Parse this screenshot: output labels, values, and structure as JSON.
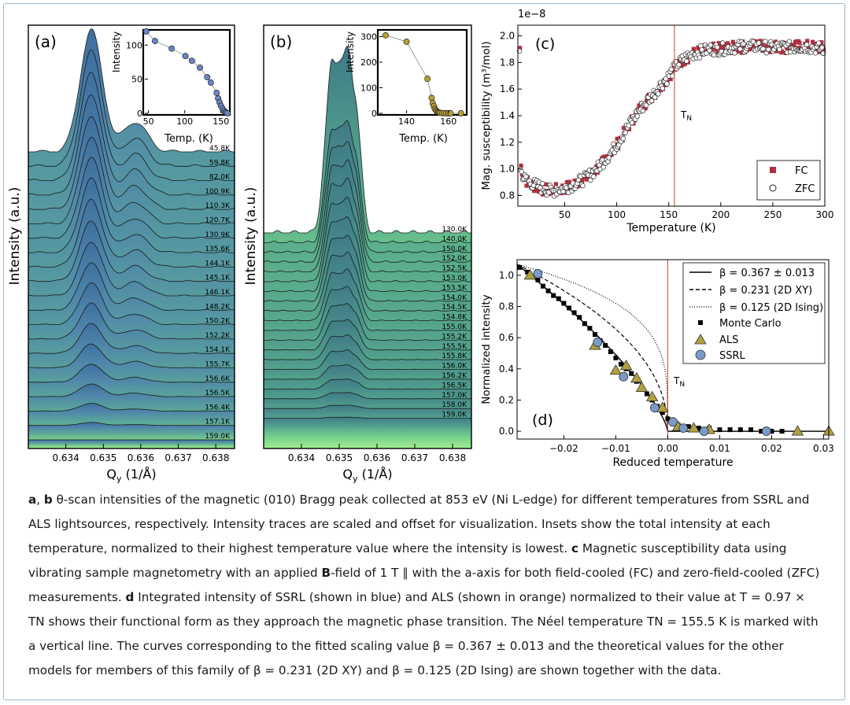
{
  "panels": {
    "a": {
      "label": "(a)",
      "ylabel": "Intensity (a.u.)",
      "xlabel": "Q",
      "xlabel_sub": "y",
      "xlabel_unit": " (1/Å)",
      "xticks": [
        "0.634",
        "0.635",
        "0.636",
        "0.637",
        "0.638"
      ],
      "temps": [
        "45.8K",
        "59.8K",
        "82.0K",
        "100.9K",
        "110.3K",
        "120.7K",
        "130.9K",
        "135.6K",
        "144.1K",
        "145.1K",
        "146.1K",
        "148.2K",
        "150.2K",
        "152.2K",
        "154.1K",
        "155.7K",
        "156.6K",
        "156.5K",
        "156.4K",
        "157.1K",
        "159.0K"
      ],
      "inset": {
        "ylabel": "Intensity",
        "xlabel": "Temp. (K)",
        "xticks": [
          "50",
          "100",
          "150"
        ],
        "yticks": [
          "0",
          "50",
          "100"
        ],
        "xlim": [
          45,
          160
        ],
        "ylim": [
          0,
          120
        ],
        "points": [
          [
            47,
            120
          ],
          [
            59,
            106
          ],
          [
            82,
            95
          ],
          [
            101,
            84
          ],
          [
            110,
            77
          ],
          [
            121,
            67
          ],
          [
            131,
            53
          ],
          [
            136,
            45
          ],
          [
            144,
            30
          ],
          [
            146,
            22
          ],
          [
            148,
            16
          ],
          [
            150,
            11
          ],
          [
            152,
            7
          ],
          [
            154,
            4
          ],
          [
            156,
            2
          ],
          [
            157,
            1
          ],
          [
            159,
            0
          ]
        ]
      }
    },
    "b": {
      "label": "(b)",
      "ylabel": "Intensity (a.u.)",
      "xlabel": "Q",
      "xlabel_sub": "y",
      "xlabel_unit": " (1/Å)",
      "xticks": [
        "0.634",
        "0.635",
        "0.636",
        "0.637",
        "0.638"
      ],
      "temps": [
        "130.0K",
        "140.0K",
        "150.0K",
        "152.0K",
        "152.5K",
        "153.0K",
        "153.5K",
        "154.0K",
        "154.5K",
        "154.8K",
        "155.0K",
        "155.2K",
        "155.5K",
        "155.8K",
        "156.0K",
        "156.2K",
        "156.5K",
        "157.0K",
        "158.0K",
        "159.0K"
      ],
      "inset": {
        "ylabel": "Intensity",
        "xlabel": "Temp. (K)",
        "xticks": [
          "140",
          "160"
        ],
        "yticks": [
          "0",
          "100",
          "200",
          "300"
        ],
        "xlim": [
          127,
          168
        ],
        "ylim": [
          0,
          320
        ],
        "points": [
          [
            130,
            305
          ],
          [
            140,
            280
          ],
          [
            150,
            135
          ],
          [
            152,
            60
          ],
          [
            152.5,
            40
          ],
          [
            153,
            28
          ],
          [
            153.5,
            18
          ],
          [
            154,
            12
          ],
          [
            154.5,
            8
          ],
          [
            155,
            5
          ],
          [
            155.5,
            3
          ],
          [
            156,
            2
          ],
          [
            157,
            1
          ],
          [
            158,
            1
          ],
          [
            159,
            0
          ],
          [
            160,
            0
          ],
          [
            161,
            0
          ],
          [
            166,
            0
          ]
        ]
      }
    },
    "c": {
      "label": "(c)",
      "ylabel": "Mag. susceptibility (m³/mol)",
      "xlabel": "Temperature (K)",
      "exponent": "1e−8",
      "tn_label": "T",
      "tn_sub": "N",
      "xticks": [
        "50",
        "100",
        "150",
        "200",
        "250",
        "300"
      ],
      "yticks": [
        "0.8",
        "1.0",
        "1.2",
        "1.4",
        "1.6",
        "1.8",
        "2.0"
      ],
      "legend": [
        "FC",
        "ZFC"
      ]
    },
    "d": {
      "label": "(d)",
      "ylabel": "Normalized intensity",
      "xlabel": "Reduced temperature",
      "tn_label": "T",
      "tn_sub": "N",
      "xticks": [
        "−0.02",
        "−0.01",
        "0.00",
        "0.01",
        "0.02",
        "0.03"
      ],
      "yticks": [
        "0.0",
        "0.2",
        "0.4",
        "0.6",
        "0.8",
        "1.0"
      ],
      "legend": [
        "β = 0.367 ± 0.013",
        "β = 0.231 (2D XY)",
        "β = 0.125 (2D Ising)",
        "Monte Carlo",
        "ALS",
        "SSRL"
      ]
    }
  },
  "chart_data": [
    {
      "type": "line",
      "panel": "a",
      "title": "",
      "xlabel": "Qy (1/Å)",
      "ylabel": "Intensity (a.u.)",
      "xlim": [
        0.633,
        0.6385
      ],
      "series_names": [
        "45.8K",
        "59.8K",
        "82.0K",
        "100.9K",
        "110.3K",
        "120.7K",
        "130.9K",
        "135.6K",
        "144.1K",
        "145.1K",
        "146.1K",
        "148.2K",
        "150.2K",
        "152.2K",
        "154.1K",
        "155.7K",
        "156.6K",
        "156.5K",
        "156.4K",
        "157.1K",
        "159.0K"
      ],
      "peak_center": 0.6347,
      "shoulder_center": 0.6358
    },
    {
      "type": "line",
      "panel": "b",
      "title": "",
      "xlabel": "Qy (1/Å)",
      "ylabel": "Intensity (a.u.)",
      "xlim": [
        0.633,
        0.6385
      ],
      "series_names": [
        "130.0K",
        "140.0K",
        "150.0K",
        "152.0K",
        "152.5K",
        "153.0K",
        "153.5K",
        "154.0K",
        "154.5K",
        "154.8K",
        "155.0K",
        "155.2K",
        "155.5K",
        "155.8K",
        "156.0K",
        "156.2K",
        "156.5K",
        "157.0K",
        "158.0K",
        "159.0K"
      ],
      "peak_center": 0.6351
    },
    {
      "type": "scatter",
      "panel": "c",
      "xlabel": "Temperature (K)",
      "ylabel": "Mag. susceptibility (m³/mol)",
      "xlim": [
        5,
        300
      ],
      "ylim": [
        0.72,
        2.08
      ],
      "y_scale_factor": "1e-8",
      "tn": 155.5,
      "legend_position": "lower-right",
      "series": [
        {
          "name": "FC",
          "color": "#b03040",
          "points": [
            [
              8,
              1.02
            ],
            [
              12,
              0.92
            ],
            [
              18,
              0.88
            ],
            [
              25,
              0.86
            ],
            [
              32,
              0.84
            ],
            [
              40,
              0.84
            ],
            [
              48,
              0.85
            ],
            [
              55,
              0.87
            ],
            [
              62,
              0.9
            ],
            [
              70,
              0.93
            ],
            [
              78,
              0.98
            ],
            [
              85,
              1.03
            ],
            [
              92,
              1.1
            ],
            [
              100,
              1.18
            ],
            [
              108,
              1.28
            ],
            [
              115,
              1.37
            ],
            [
              122,
              1.45
            ],
            [
              130,
              1.52
            ],
            [
              138,
              1.58
            ],
            [
              145,
              1.65
            ],
            [
              150,
              1.7
            ],
            [
              155,
              1.75
            ],
            [
              160,
              1.8
            ],
            [
              168,
              1.84
            ],
            [
              175,
              1.87
            ],
            [
              185,
              1.89
            ],
            [
              195,
              1.9
            ],
            [
              205,
              1.91
            ],
            [
              215,
              1.91
            ],
            [
              225,
              1.92
            ],
            [
              235,
              1.93
            ],
            [
              245,
              1.92
            ],
            [
              255,
              1.92
            ],
            [
              265,
              1.91
            ],
            [
              275,
              1.92
            ],
            [
              285,
              1.92
            ],
            [
              295,
              1.91
            ]
          ]
        },
        {
          "name": "ZFC",
          "color": "#ffffff",
          "points": [
            [
              7,
              1.0
            ],
            [
              11,
              0.93
            ],
            [
              16,
              0.9
            ],
            [
              22,
              0.88
            ],
            [
              30,
              0.85
            ],
            [
              38,
              0.83
            ],
            [
              45,
              0.85
            ],
            [
              52,
              0.86
            ],
            [
              60,
              0.89
            ],
            [
              68,
              0.92
            ],
            [
              75,
              0.96
            ],
            [
              82,
              1.01
            ],
            [
              90,
              1.08
            ],
            [
              98,
              1.16
            ],
            [
              105,
              1.25
            ],
            [
              112,
              1.33
            ],
            [
              120,
              1.42
            ],
            [
              128,
              1.5
            ],
            [
              135,
              1.56
            ],
            [
              142,
              1.63
            ],
            [
              148,
              1.68
            ],
            [
              153,
              1.73
            ],
            [
              158,
              1.78
            ],
            [
              165,
              1.83
            ],
            [
              172,
              1.86
            ],
            [
              180,
              1.88
            ],
            [
              190,
              1.9
            ],
            [
              200,
              1.9
            ],
            [
              210,
              1.91
            ],
            [
              220,
              1.92
            ],
            [
              230,
              1.92
            ],
            [
              240,
              1.92
            ],
            [
              250,
              1.91
            ],
            [
              260,
              1.92
            ],
            [
              270,
              1.91
            ],
            [
              280,
              1.92
            ],
            [
              290,
              1.91
            ],
            [
              298,
              1.9
            ]
          ]
        }
      ]
    },
    {
      "type": "scatter",
      "panel": "d",
      "xlabel": "Reduced temperature",
      "ylabel": "Normalized intensity",
      "xlim": [
        -0.029,
        0.031
      ],
      "ylim": [
        -0.05,
        1.1
      ],
      "tn": 0.0,
      "legend_position": "top-right",
      "series": [
        {
          "name": "Monte Carlo",
          "marker": "square",
          "points": [
            [
              -0.0285,
              1.05
            ],
            [
              -0.027,
              1.02
            ],
            [
              -0.026,
              0.99
            ],
            [
              -0.025,
              0.97
            ],
            [
              -0.024,
              0.93
            ],
            [
              -0.023,
              0.9
            ],
            [
              -0.022,
              0.87
            ],
            [
              -0.021,
              0.85
            ],
            [
              -0.02,
              0.82
            ],
            [
              -0.019,
              0.79
            ],
            [
              -0.018,
              0.76
            ],
            [
              -0.017,
              0.73
            ],
            [
              -0.016,
              0.69
            ],
            [
              -0.015,
              0.66
            ],
            [
              -0.014,
              0.62
            ],
            [
              -0.013,
              0.58
            ],
            [
              -0.012,
              0.55
            ],
            [
              -0.011,
              0.51
            ],
            [
              -0.01,
              0.47
            ],
            [
              -0.009,
              0.43
            ],
            [
              -0.008,
              0.4
            ],
            [
              -0.007,
              0.37
            ],
            [
              -0.006,
              0.32
            ],
            [
              -0.005,
              0.28
            ],
            [
              -0.004,
              0.24
            ],
            [
              -0.003,
              0.2
            ],
            [
              -0.002,
              0.16
            ],
            [
              -0.001,
              0.12
            ],
            [
              0.0,
              0.08
            ],
            [
              0.001,
              0.05
            ],
            [
              0.002,
              0.04
            ],
            [
              0.003,
              0.03
            ],
            [
              0.004,
              0.03
            ],
            [
              0.005,
              0.02
            ],
            [
              0.006,
              0.02
            ],
            [
              0.008,
              0.02
            ],
            [
              0.01,
              0.01
            ],
            [
              0.012,
              0.01
            ],
            [
              0.014,
              0.01
            ],
            [
              0.016,
              0.01
            ],
            [
              0.018,
              0.0
            ],
            [
              0.02,
              0.0
            ],
            [
              0.022,
              0.0
            ]
          ]
        },
        {
          "name": "ALS",
          "marker": "triangle",
          "color": "#b0a040",
          "points": [
            [
              -0.0265,
              1.0
            ],
            [
              -0.014,
              0.55
            ],
            [
              -0.01,
              0.39
            ],
            [
              -0.008,
              0.42
            ],
            [
              -0.006,
              0.34
            ],
            [
              -0.005,
              0.28
            ],
            [
              -0.003,
              0.22
            ],
            [
              -0.001,
              0.15
            ],
            [
              0.002,
              0.03
            ],
            [
              0.005,
              0.02
            ],
            [
              0.008,
              0.01
            ],
            [
              0.025,
              0.0
            ],
            [
              0.031,
              0.0
            ]
          ]
        },
        {
          "name": "SSRL",
          "marker": "circle",
          "color": "#7a9ac8",
          "points": [
            [
              -0.025,
              1.01
            ],
            [
              -0.0135,
              0.57
            ],
            [
              -0.0085,
              0.35
            ],
            [
              -0.0025,
              0.15
            ],
            [
              0.001,
              0.06
            ],
            [
              0.003,
              0.02
            ],
            [
              0.007,
              0.0
            ],
            [
              0.019,
              0.0
            ]
          ]
        }
      ],
      "fits": [
        {
          "name": "β = 0.367 ± 0.013",
          "beta": 0.367,
          "style": "solid"
        },
        {
          "name": "β = 0.231 (2D XY)",
          "beta": 0.231,
          "style": "dashed"
        },
        {
          "name": "β = 0.125 (2D Ising)",
          "beta": 0.125,
          "style": "dotted"
        }
      ]
    }
  ],
  "caption": {
    "a_b_label": "a",
    "sep1": ", ",
    "b_label": "b",
    "t1": " θ-scan intensities of the magnetic (010) Bragg peak collected at 853 eV (Ni L-edge) for different temperatures from SSRL and ALS lightsources, respectively. Intensity traces are scaled and offset for visualization. Insets show the total intensity at each temperature, normalized to their highest temperature value where the intensity is lowest. ",
    "c_label": "c",
    "t2": " Magnetic susceptibility data using vibrating sample magnetometry with an applied ",
    "field_label": "B",
    "t3": "-field of 1 T ∥ with the a-axis for both field-cooled (FC) and zero-field-cooled (ZFC) measurements. ",
    "d_label": "d",
    "t4": " Integrated intensity of SSRL (shown in blue) and ALS (shown in orange) normalized to their value at T = 0.97 × TN shows their functional form as they approach the magnetic phase transition. The Néel temperature TN = 155.5 K is marked with a vertical line. The curves corresponding to the fitted scaling value β = 0.367 ± 0.013 and the theoretical values for the other models for members of this family of β = 0.231 (2D XY) and β = 0.125 (2D Ising) are shown together with the data."
  }
}
